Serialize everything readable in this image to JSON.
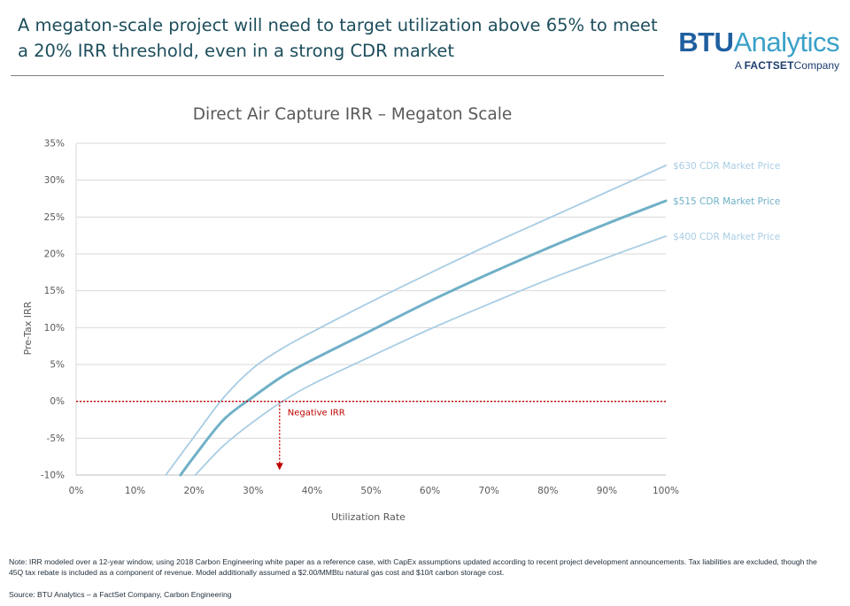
{
  "header": {
    "headline": "A megaton-scale project will need to target utilization above 65% to meet a 20% IRR threshold, even in a strong CDR market"
  },
  "logo": {
    "brand_bold": "BTU",
    "brand_light": "Analytics",
    "tag_prefix": "A",
    "tag_factset": "FACTSET",
    "tag_suffix": "Company"
  },
  "colors": {
    "headline": "#1d4e5c",
    "series_main": "#6fb0c7",
    "series_light": "#a9cde4",
    "negative": "#c00000",
    "grid": "#d9d9d9"
  },
  "chart_data": {
    "type": "line",
    "title": "Direct Air Capture IRR – Megaton Scale",
    "xlabel": "Utilization Rate",
    "ylabel": "Pre-Tax IRR",
    "xlim": [
      0,
      100
    ],
    "ylim": [
      -10,
      35
    ],
    "xticks": [
      0,
      10,
      20,
      30,
      40,
      50,
      60,
      70,
      80,
      90,
      100
    ],
    "yticks": [
      -10,
      -5,
      0,
      5,
      10,
      15,
      20,
      25,
      30,
      35
    ],
    "xtick_labels": [
      "0%",
      "10%",
      "20%",
      "30%",
      "40%",
      "50%",
      "60%",
      "70%",
      "80%",
      "90%",
      "100%"
    ],
    "ytick_labels": [
      "-10%",
      "-5%",
      "0%",
      "5%",
      "10%",
      "15%",
      "20%",
      "25%",
      "30%",
      "35%"
    ],
    "grid": "horizontal",
    "series": [
      {
        "name": "$630 CDR Market Price",
        "style": "light",
        "x": [
          15.2,
          20,
          25,
          30,
          35,
          40,
          50,
          60,
          70,
          80,
          90,
          100
        ],
        "y": [
          -10,
          -4.8,
          0.5,
          4.5,
          7.2,
          9.4,
          13.5,
          17.4,
          21.2,
          24.8,
          28.4,
          32
        ]
      },
      {
        "name": "$515 CDR Market Price",
        "style": "bold",
        "x": [
          17.7,
          20,
          25,
          30,
          35,
          40,
          50,
          60,
          70,
          80,
          90,
          100
        ],
        "y": [
          -10,
          -7.5,
          -2.5,
          0.6,
          3.4,
          5.6,
          9.6,
          13.6,
          17.3,
          20.8,
          24.1,
          27.2
        ]
      },
      {
        "name": "$400 CDR Market Price",
        "style": "light",
        "x": [
          20.2,
          25,
          30,
          35,
          40,
          50,
          60,
          70,
          80,
          90,
          100
        ],
        "y": [
          -10,
          -6,
          -2.8,
          0,
          2.3,
          6.1,
          9.8,
          13.2,
          16.5,
          19.5,
          22.4
        ]
      }
    ],
    "annotation": {
      "label": "Negative IRR",
      "zero_line_y": 0,
      "arrow_x": 34.5,
      "arrow_from_y": 0,
      "arrow_to_y": -9.2
    }
  },
  "footer": {
    "note": "Note: IRR modeled over a 12-year window, using 2018 Carbon Engineering white paper as a reference case, with CapEx assumptions updated according to recent project development announcements. Tax liabilities are excluded, though the 45Q tax rebate is included as a component of revenue. Model additionally assumed a $2.00/MMBtu natural gas cost and $10/t carbon storage cost.",
    "source": "Source: BTU Analytics – a FactSet Company, Carbon Engineering"
  }
}
